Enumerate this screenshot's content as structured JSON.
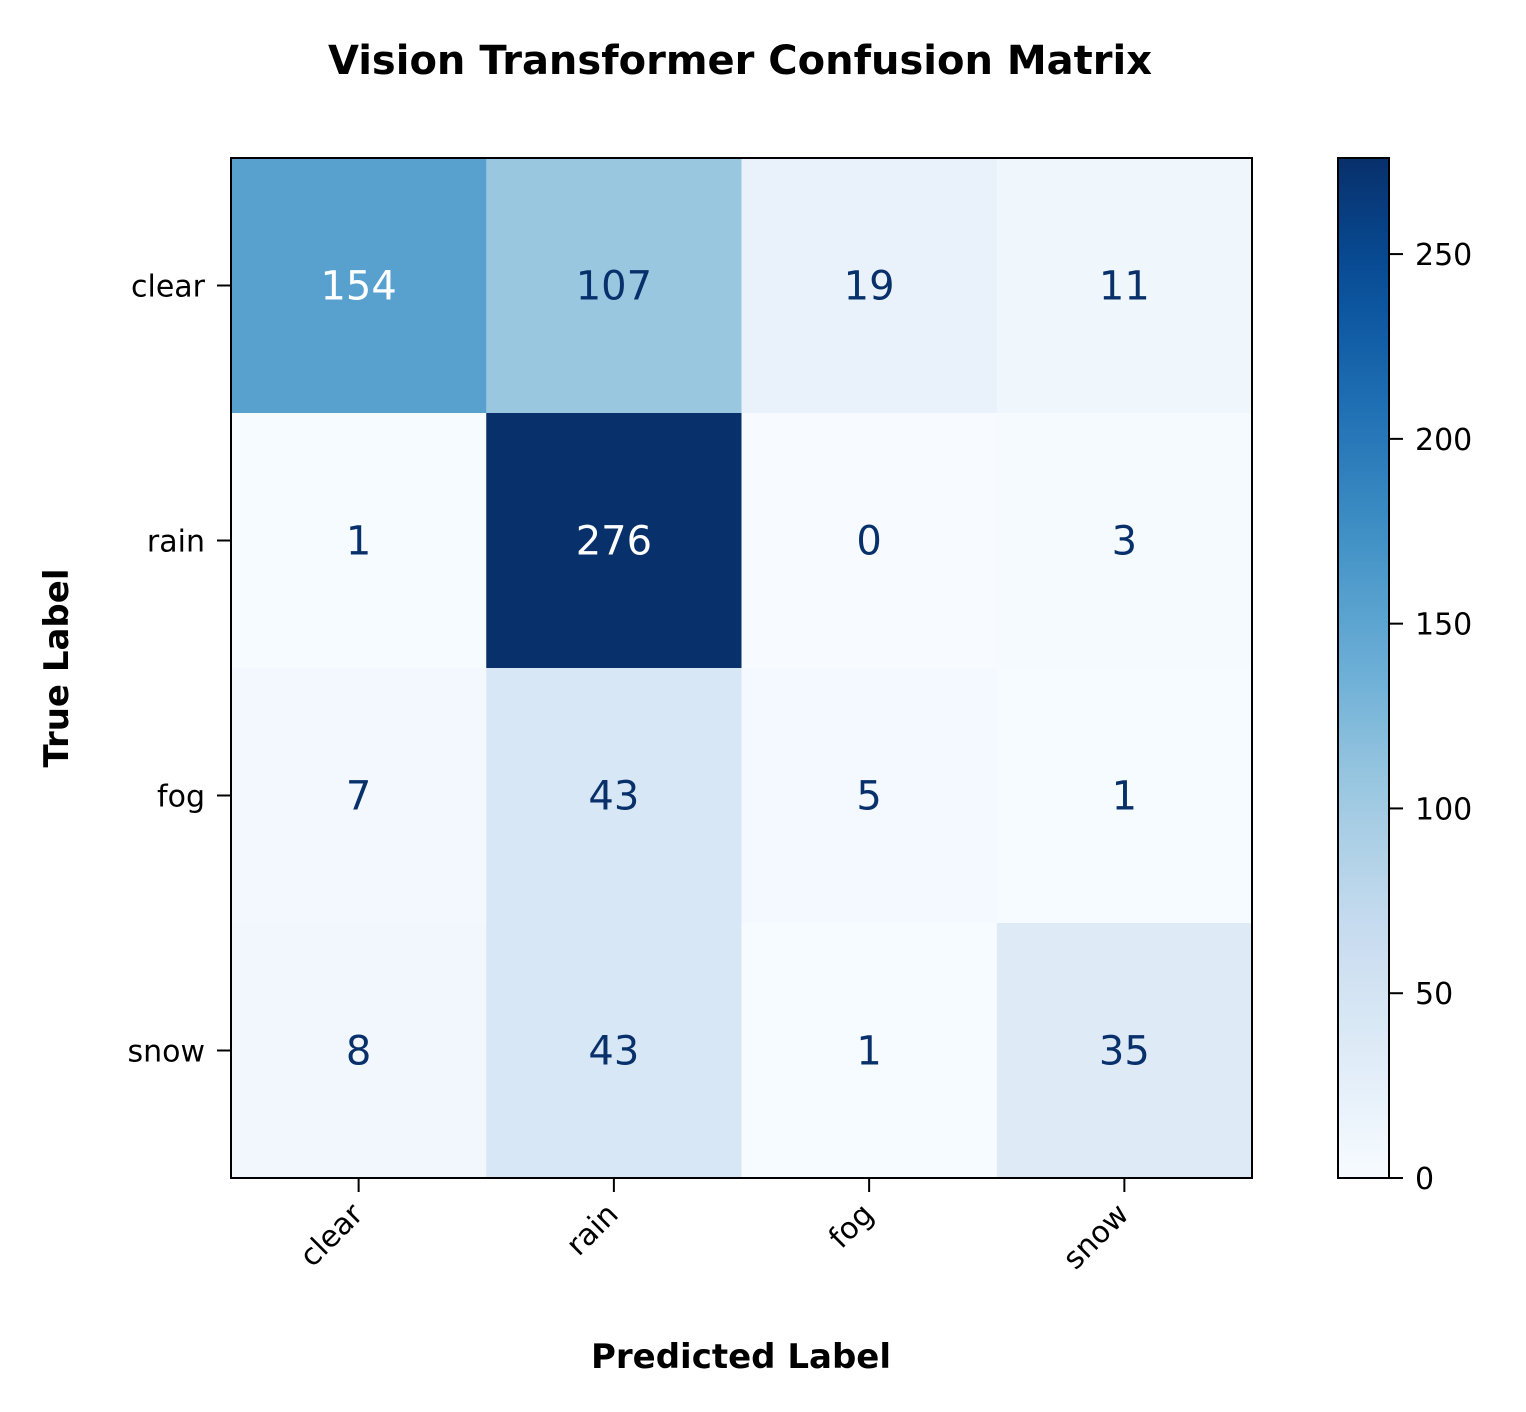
{
  "chart_data": {
    "type": "heatmap",
    "title": "Vision Transformer Confusion Matrix",
    "xlabel": "Predicted Label",
    "ylabel": "True Label",
    "x_categories": [
      "clear",
      "rain",
      "fog",
      "snow"
    ],
    "y_categories": [
      "clear",
      "rain",
      "fog",
      "snow"
    ],
    "values": [
      [
        154,
        107,
        19,
        11
      ],
      [
        1,
        276,
        0,
        3
      ],
      [
        7,
        43,
        5,
        1
      ],
      [
        8,
        43,
        1,
        35
      ]
    ],
    "colormap": "Blues",
    "colorbar": {
      "range": [
        0,
        276
      ],
      "ticks": [
        0,
        50,
        100,
        150,
        200,
        250
      ],
      "tick_labels": [
        "0",
        "50",
        "100",
        "150",
        "200",
        "250"
      ]
    },
    "grid": false,
    "colors": {
      "text_light": "#ffffff",
      "text_dark": "#08306b",
      "axis": "#000000"
    }
  }
}
